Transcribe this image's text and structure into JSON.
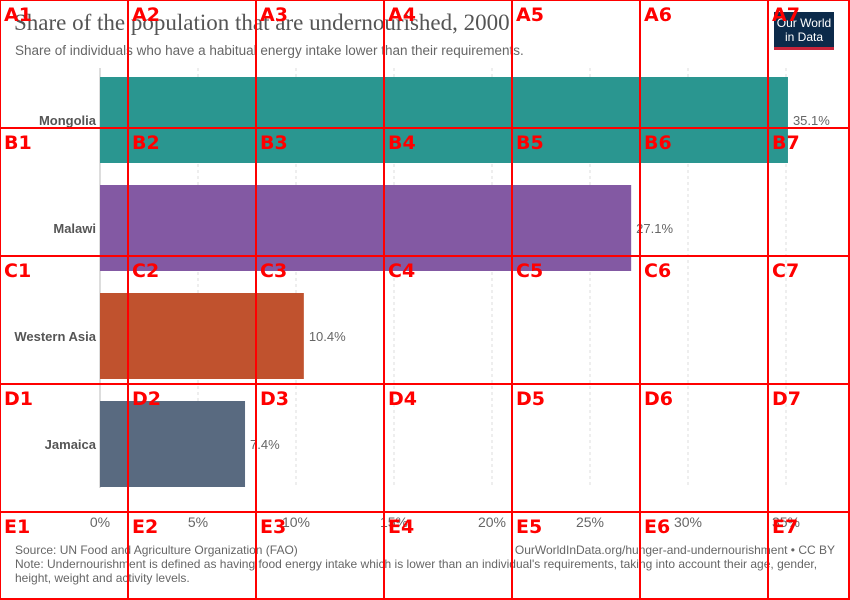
{
  "title": "Share of the population that are undernourished, 2000",
  "subtitle": "Share of individuals who have a habitual energy intake lower than their requirements.",
  "logo": {
    "line1": "Our World",
    "line2": "in Data",
    "bg_color": "#0c2a4a",
    "accent_color": "#c8243a"
  },
  "chart_data": {
    "type": "bar",
    "orientation": "horizontal",
    "categories": [
      "Mongolia",
      "Malawi",
      "Western Asia",
      "Jamaica"
    ],
    "values": [
      35.1,
      27.1,
      10.4,
      7.4
    ],
    "value_labels": [
      "35.1%",
      "27.1%",
      "10.4%",
      "7.4%"
    ],
    "colors": [
      "#2a9690",
      "#8359a3",
      "#c0522e",
      "#596a80"
    ],
    "xlim": [
      0,
      35
    ],
    "x_ticks": [
      0,
      5,
      10,
      15,
      20,
      25,
      30,
      35
    ],
    "x_tick_labels": [
      "0%",
      "5%",
      "10%",
      "15%",
      "20%",
      "25%",
      "30%",
      "35%"
    ],
    "grid": true
  },
  "footer": {
    "source": "Source: UN Food and Agriculture Organization (FAO)",
    "url": "OurWorldInData.org/hunger-and-undernourishment • CC BY",
    "note": "Note: Undernourishment is defined as having food energy intake which is lower than an individual's requirements, taking into account their age, gender, height, weight and activity levels."
  },
  "grid_overlay": {
    "color": "#ff0000",
    "rows": [
      "A",
      "B",
      "C",
      "D",
      "E"
    ],
    "cols": [
      "1",
      "2",
      "3",
      "4",
      "5",
      "6",
      "7"
    ]
  }
}
